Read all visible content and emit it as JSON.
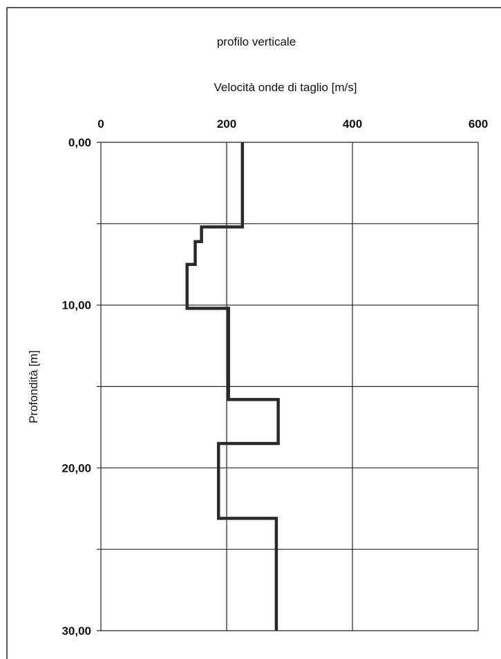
{
  "chart_data": {
    "type": "line",
    "title": "profilo verticale",
    "xlabel": "Velocità onde di taglio [m/s]",
    "ylabel": "Profondità [m]",
    "x_axis_position": "top",
    "y_axis_inverted": true,
    "xlim": [
      0,
      600
    ],
    "ylim": [
      0,
      30
    ],
    "x_ticks": [
      0,
      200,
      400,
      600
    ],
    "x_tick_labels": [
      "0",
      "200",
      "400",
      "600"
    ],
    "y_ticks": [
      0,
      10,
      20,
      30
    ],
    "y_tick_labels": [
      "0,00",
      "10,00",
      "20,00",
      "30,00"
    ],
    "y_gridlines": [
      0,
      5,
      10,
      15,
      20,
      25,
      30
    ],
    "grid": true,
    "series": [
      {
        "x": [
          225,
          225,
          160,
          160,
          150,
          150,
          137,
          137,
          203,
          203,
          282,
          282,
          187,
          187,
          279,
          279
        ],
        "y": [
          0,
          5.2,
          5.2,
          6.1,
          6.1,
          7.5,
          7.5,
          10.2,
          10.2,
          15.8,
          15.8,
          18.5,
          18.5,
          23.1,
          23.1,
          30
        ],
        "color": "#2a2a2a"
      }
    ]
  }
}
